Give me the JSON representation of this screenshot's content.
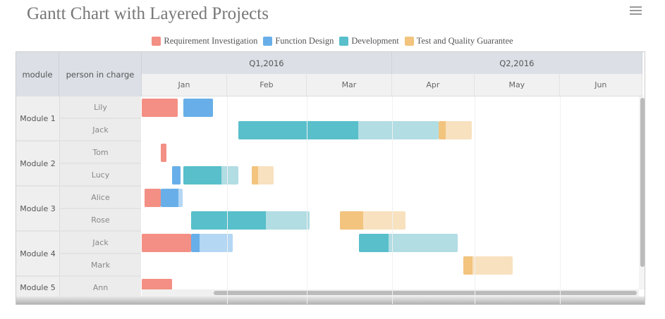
{
  "chart_data": {
    "type": "gantt",
    "title": "Gantt Chart with Layered Projects",
    "legend": [
      {
        "name": "Requirement Investigation",
        "color": "#f38f84"
      },
      {
        "name": "Function Design",
        "color": "#68afe9"
      },
      {
        "name": "Development",
        "color": "#58bfcb"
      },
      {
        "name": "Test and Quality Guarantee",
        "color": "#f2c47e"
      }
    ],
    "columns": {
      "module": "module",
      "person": "person in charge"
    },
    "quarters": [
      "Q1,2016",
      "Q2,2016"
    ],
    "months": [
      "Jan",
      "Feb",
      "Mar",
      "Apr",
      "May",
      "Jun"
    ],
    "rows": [
      {
        "module": "Module 1",
        "person": "Lily",
        "tasks": [
          {
            "phase": 0,
            "start": "2016-01-01",
            "end": "2016-01-14",
            "progress": 1
          },
          {
            "phase": 1,
            "start": "2016-01-16",
            "end": "2016-01-27",
            "progress": 1
          }
        ]
      },
      {
        "module": "Module 1",
        "person": "Jack",
        "tasks": [
          {
            "phase": 2,
            "start": "2016-02-05",
            "end": "2016-04-18",
            "progress": 0.6
          },
          {
            "phase": 3,
            "start": "2016-04-18",
            "end": "2016-04-30",
            "progress": 0.2
          }
        ]
      },
      {
        "module": "Module 2",
        "person": "Tom",
        "tasks": [
          {
            "phase": 0,
            "start": "2016-01-08",
            "end": "2016-01-10",
            "progress": 1
          }
        ]
      },
      {
        "module": "Module 2",
        "person": "Lucy",
        "tasks": [
          {
            "phase": 1,
            "start": "2016-01-12",
            "end": "2016-01-15",
            "progress": 1
          },
          {
            "phase": 2,
            "start": "2016-01-16",
            "end": "2016-02-05",
            "progress": 0.7
          },
          {
            "phase": 3,
            "start": "2016-02-10",
            "end": "2016-02-18",
            "progress": 0.3
          }
        ]
      },
      {
        "module": "Module 3",
        "person": "Alice",
        "tasks": [
          {
            "phase": 0,
            "start": "2016-01-02",
            "end": "2016-01-08",
            "progress": 1
          },
          {
            "phase": 1,
            "start": "2016-01-08",
            "end": "2016-01-16",
            "progress": 0.8
          }
        ]
      },
      {
        "module": "Module 3",
        "person": "Rose",
        "tasks": [
          {
            "phase": 2,
            "start": "2016-01-19",
            "end": "2016-03-02",
            "progress": 0.63
          },
          {
            "phase": 3,
            "start": "2016-03-13",
            "end": "2016-04-06",
            "progress": 0.35
          }
        ]
      },
      {
        "module": "Module 4",
        "person": "Jack",
        "tasks": [
          {
            "phase": 0,
            "start": "2016-01-01",
            "end": "2016-01-19",
            "progress": 1
          },
          {
            "phase": 1,
            "start": "2016-01-19",
            "end": "2016-02-03",
            "progress": 0.2
          },
          {
            "phase": 2,
            "start": "2016-03-20",
            "end": "2016-04-25",
            "progress": 0.3
          }
        ]
      },
      {
        "module": "Module 4",
        "person": "Mark",
        "tasks": [
          {
            "phase": 3,
            "start": "2016-04-27",
            "end": "2016-05-15",
            "progress": 0.18
          }
        ]
      },
      {
        "module": "Module 5",
        "person": "Ann",
        "tasks": [
          {
            "phase": 0,
            "start": "2016-01-01",
            "end": "2016-01-12",
            "progress": 1
          }
        ]
      }
    ]
  }
}
